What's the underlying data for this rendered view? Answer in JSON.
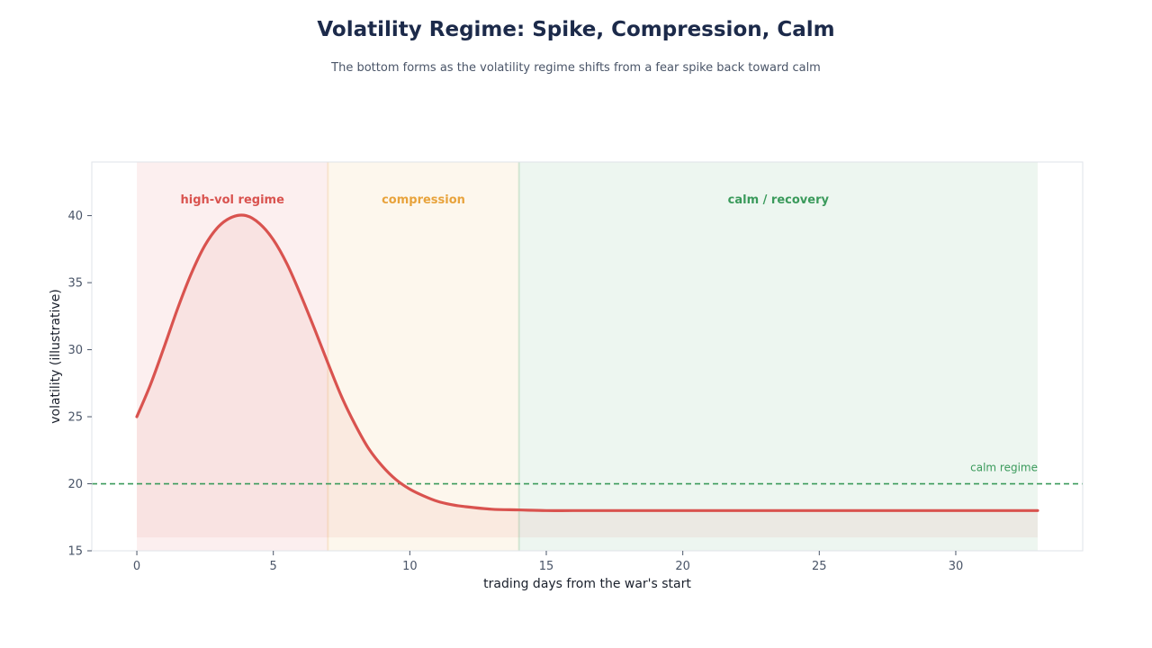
{
  "chart_data": {
    "type": "line",
    "title": "Volatility Regime: Spike, Compression, Calm",
    "subtitle": "The bottom forms as the volatility regime shifts from a fear spike back toward calm",
    "xlabel": "trading days from the war's start",
    "ylabel": "volatility (illustrative)",
    "xlim": [
      -1.65,
      34.65
    ],
    "ylim": [
      15,
      44
    ],
    "xticks": [
      0,
      5,
      10,
      15,
      20,
      25,
      30
    ],
    "yticks": [
      15,
      20,
      25,
      30,
      35,
      40
    ],
    "grid": false,
    "series": [
      {
        "color": "#d9534f",
        "x": [
          0,
          0.5,
          1,
          1.5,
          2,
          2.5,
          3,
          3.5,
          4,
          4.5,
          5,
          5.5,
          6,
          6.5,
          7,
          7.5,
          8,
          8.5,
          9,
          9.5,
          10,
          10.5,
          11,
          11.5,
          12,
          13,
          14,
          15,
          16,
          18,
          20,
          22,
          24,
          26,
          28,
          30,
          32,
          33
        ],
        "y": [
          25.0,
          27.4,
          30.2,
          33.1,
          35.7,
          37.8,
          39.2,
          39.9,
          40.0,
          39.4,
          38.2,
          36.4,
          34.1,
          31.6,
          29.0,
          26.5,
          24.4,
          22.6,
          21.3,
          20.3,
          19.6,
          19.1,
          18.7,
          18.45,
          18.3,
          18.1,
          18.05,
          18.0,
          18.0,
          18.0,
          18.0,
          18.0,
          18.0,
          18.0,
          18.0,
          18.0,
          18.0,
          18.0
        ],
        "fill_base": 16
      }
    ],
    "regions": [
      {
        "label": "high-vol regime",
        "x0": 0,
        "x1": 7,
        "color": "#d9534f"
      },
      {
        "label": "compression",
        "x0": 7,
        "x1": 14,
        "color": "#e8a33c"
      },
      {
        "label": "calm / recovery",
        "x0": 14,
        "x1": 33,
        "color": "#3a9a5b"
      }
    ],
    "reference_line": {
      "y": 20,
      "label": "calm regime",
      "color": "#3a9a5b"
    }
  }
}
